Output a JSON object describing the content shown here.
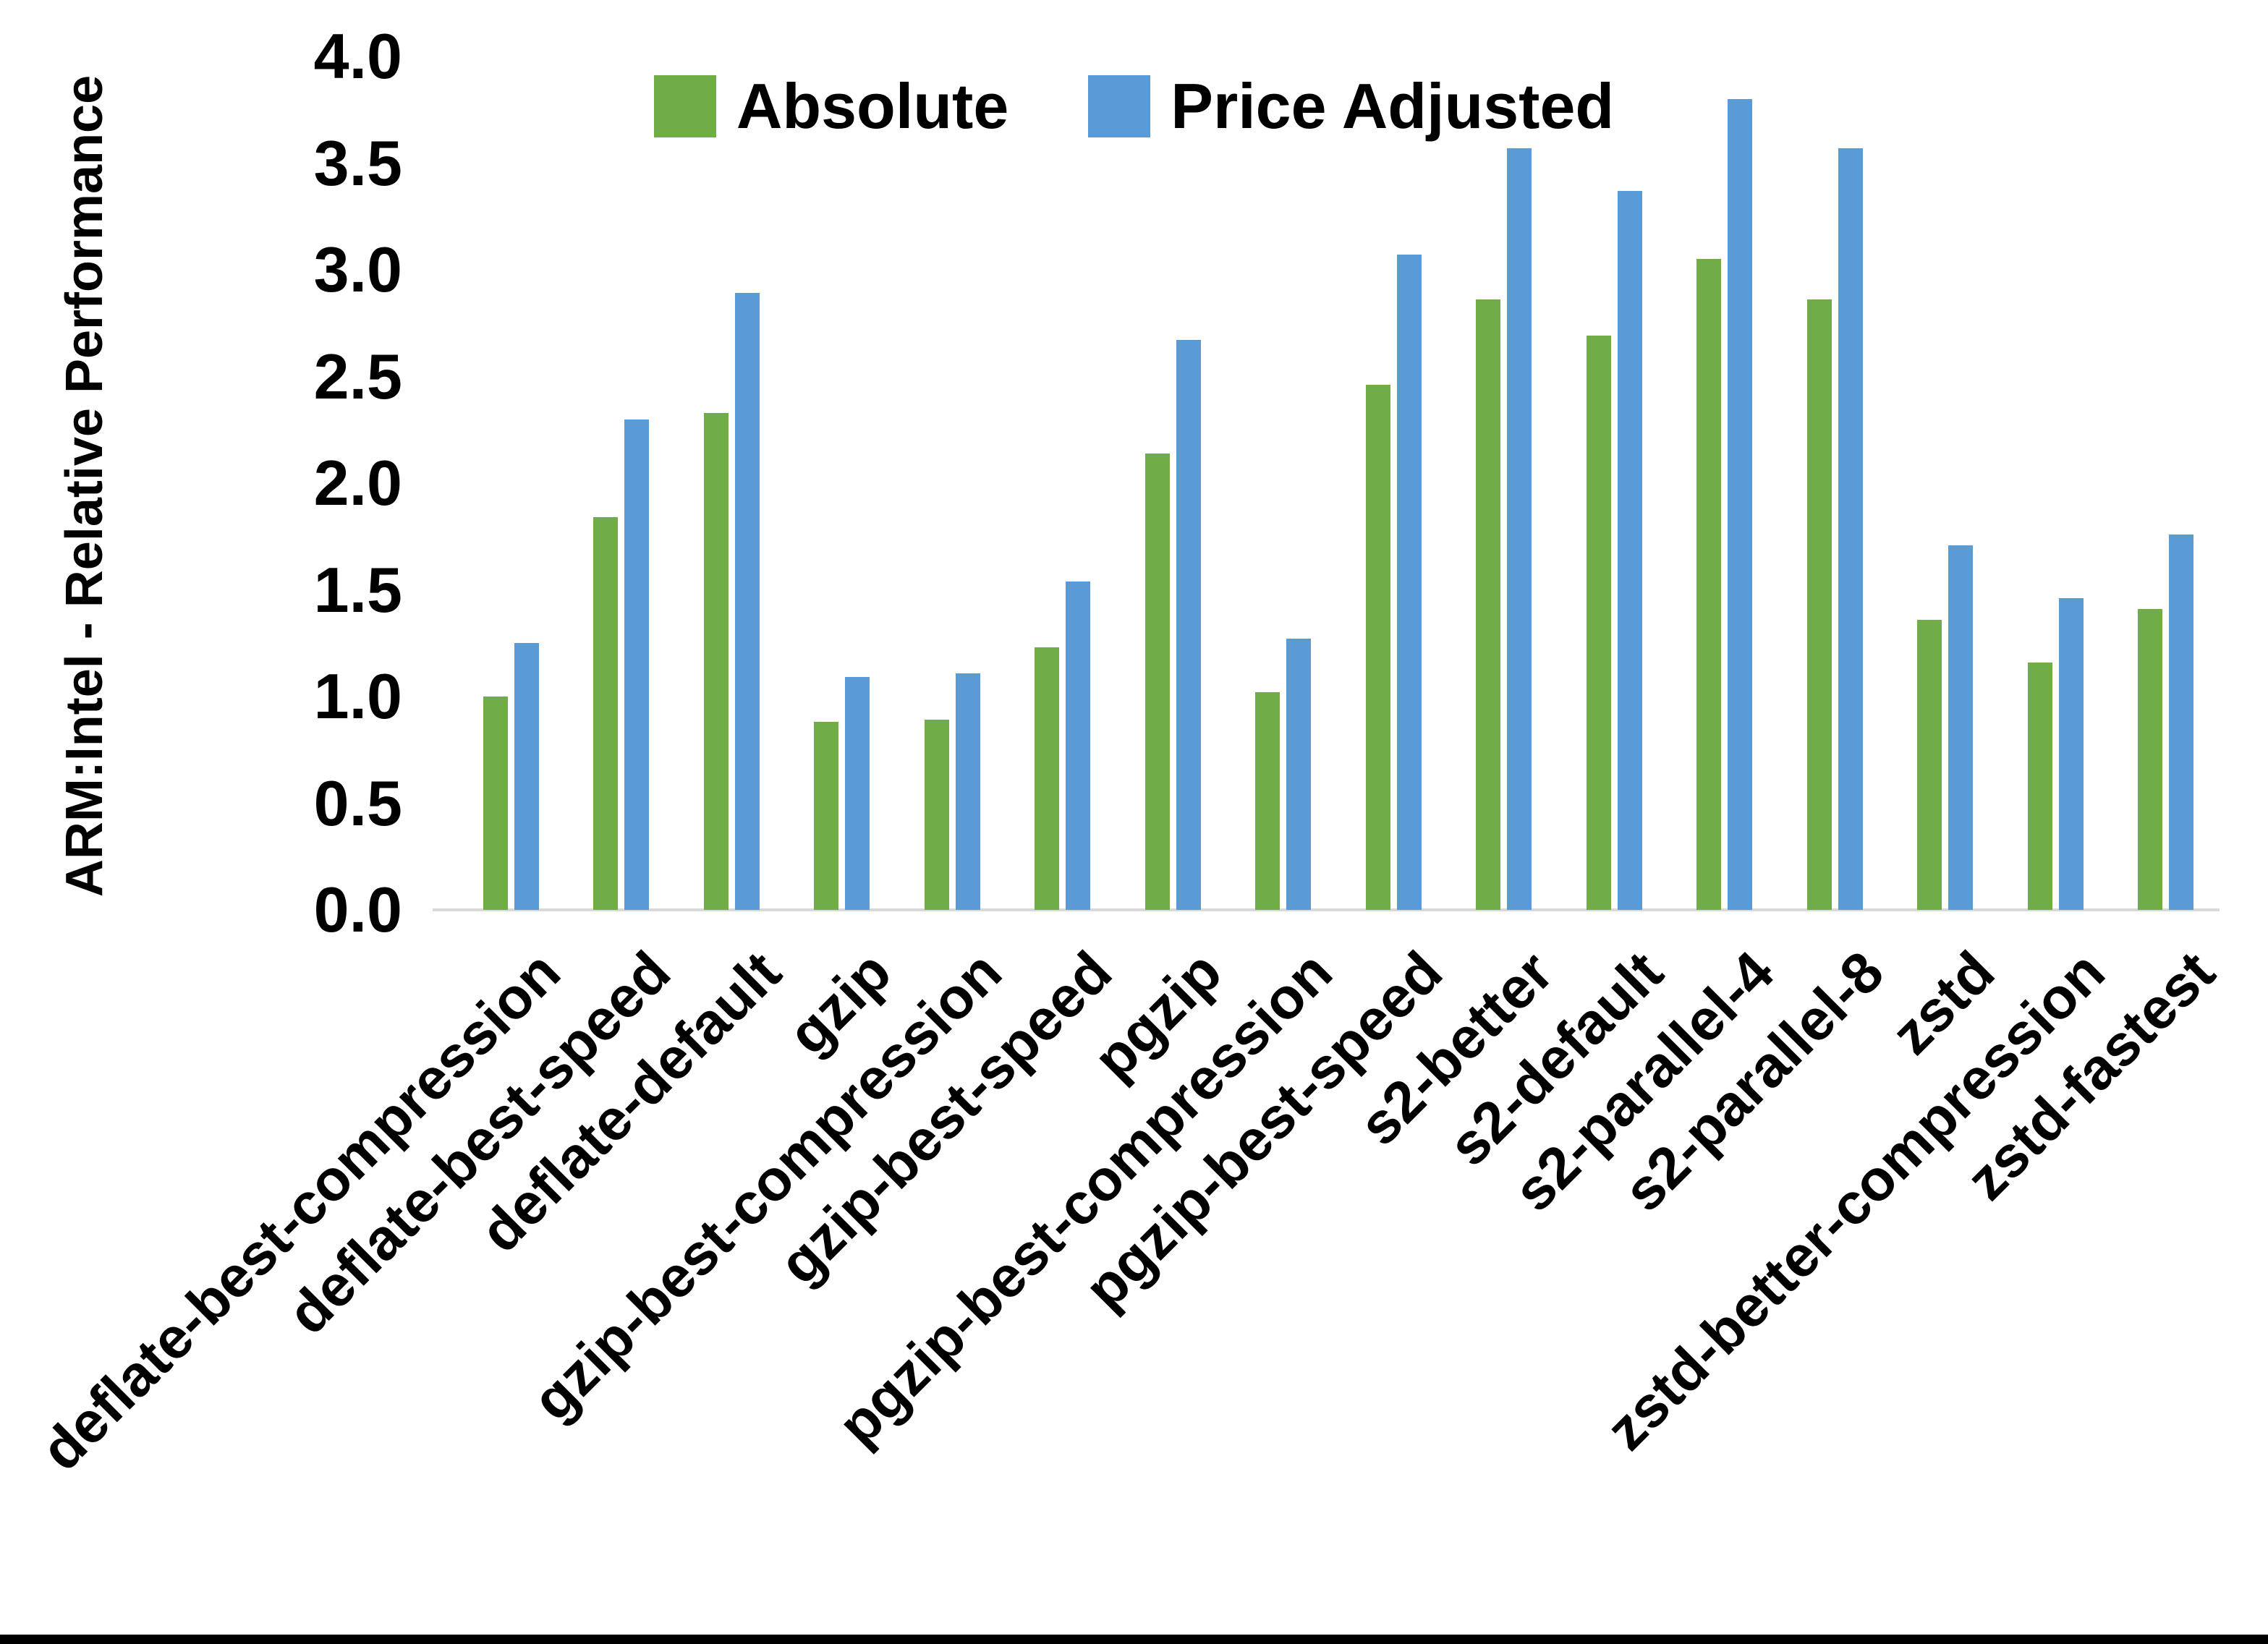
{
  "page": {
    "background": "#ffffff",
    "bottom_border_color": "#000000",
    "axis_line_color": "#d9d9d9"
  },
  "legend": {
    "items": [
      {
        "label": "Absolute",
        "color": "#70AD47"
      },
      {
        "label": "Price Adjusted",
        "color": "#5B9BD5"
      }
    ]
  },
  "chart_data": {
    "type": "bar",
    "title": "",
    "xlabel": "",
    "ylabel": "ARM:Intel - Relative Performance",
    "ylim": [
      0.0,
      4.0
    ],
    "ytick_step": 0.5,
    "yticks": [
      "4.0",
      "3.5",
      "3.0",
      "2.5",
      "2.0",
      "1.5",
      "1.0",
      "0.5",
      "0.0"
    ],
    "grid": false,
    "legend_position": "top-center",
    "categories": [
      "deflate-best-compression",
      "deflate-best-speed",
      "deflate-default",
      "gzip",
      "gzip-best-compression",
      "gzip-best-speed",
      "pgzip",
      "pgzip-best-compression",
      "pgzip-best-speed",
      "s2-better",
      "s2-default",
      "s2-parallel-4",
      "s2-parallel-8",
      "zstd",
      "zstd-better-compression",
      "zstd-fastest"
    ],
    "series": [
      {
        "name": "Absolute",
        "color": "#70AD47",
        "values": [
          1.0,
          1.84,
          2.33,
          0.88,
          0.89,
          1.23,
          2.14,
          1.02,
          2.46,
          2.86,
          2.69,
          3.05,
          2.86,
          1.36,
          1.16,
          1.41
        ]
      },
      {
        "name": "Price Adjusted",
        "color": "#5B9BD5",
        "values": [
          1.25,
          2.3,
          2.89,
          1.09,
          1.11,
          1.54,
          2.67,
          1.27,
          3.07,
          3.57,
          3.37,
          3.8,
          3.57,
          1.71,
          1.46,
          1.76
        ]
      }
    ]
  }
}
